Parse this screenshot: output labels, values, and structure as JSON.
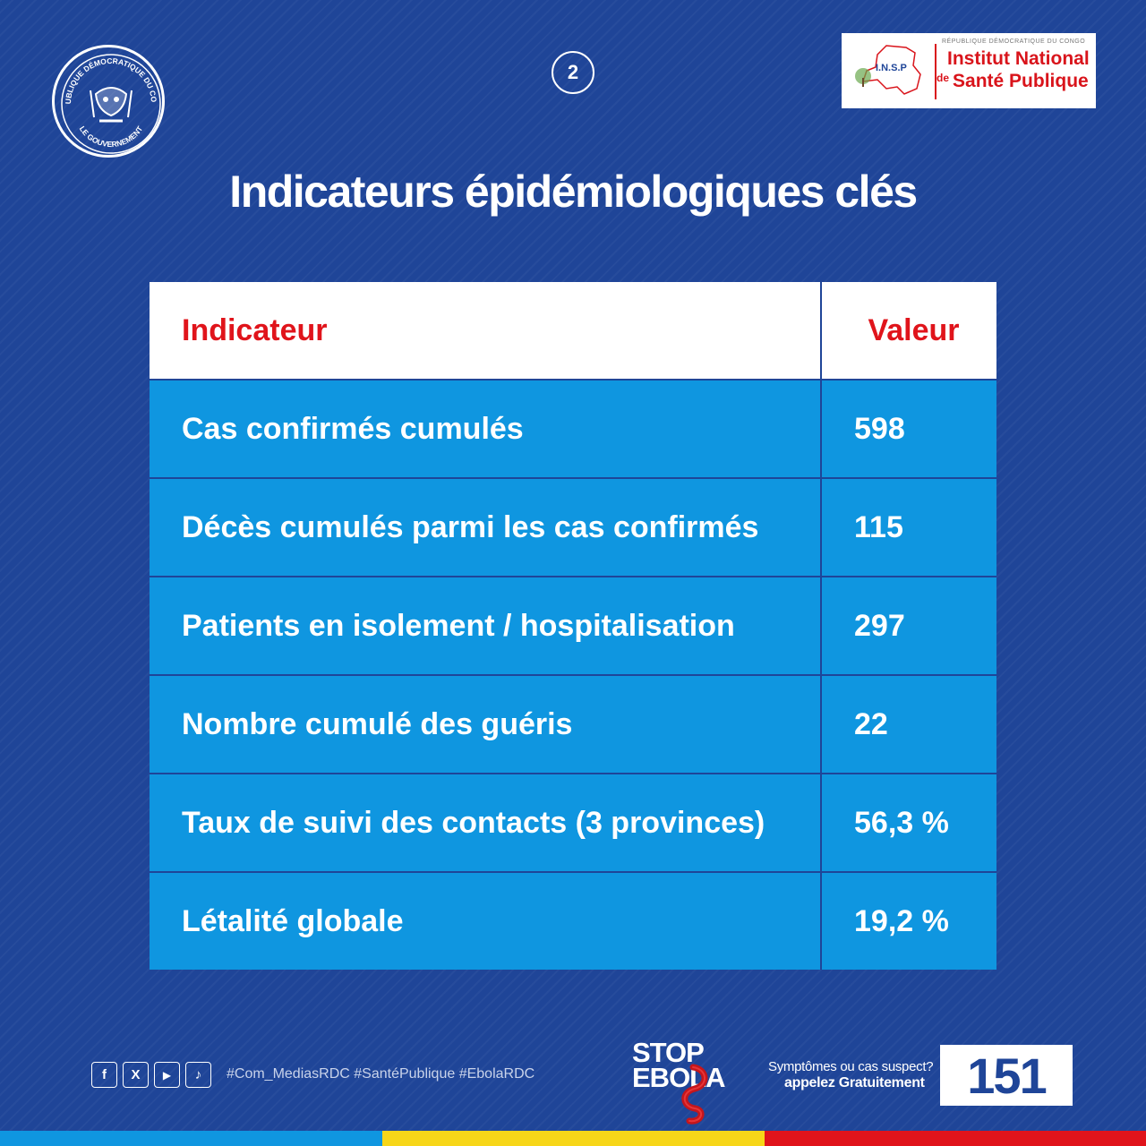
{
  "header": {
    "seal": {
      "top_text": "RÉPUBLIQUE DÉMOCRATIQUE DU CONGO",
      "bottom_text": "LE GOUVERNEMENT"
    },
    "page_number": "2",
    "insp_logo": {
      "country": "RÉPUBLIQUE DÉMOCRATIQUE DU CONGO",
      "acronym": "I.N.S.P",
      "name_line1": "Institut National",
      "name_line2_prefix": "de",
      "name_line2": "Santé Publique"
    }
  },
  "title": "Indicateurs épidémiologiques clés",
  "table": {
    "headers": {
      "indicator": "Indicateur",
      "value": "Valeur"
    },
    "rows": [
      {
        "indicator": "Cas confirmés cumulés",
        "value": "598"
      },
      {
        "indicator": "Décès cumulés parmi les cas confirmés",
        "value": "115"
      },
      {
        "indicator": "Patients en isolement / hospitalisation",
        "value": "297"
      },
      {
        "indicator": "Nombre cumulé des guéris",
        "value": "22"
      },
      {
        "indicator": "Taux de suivi des contacts (3 provinces)",
        "value": "56,3 %"
      },
      {
        "indicator": "Létalité globale",
        "value": "19,2 %"
      }
    ]
  },
  "footer": {
    "socials": [
      {
        "icon": "facebook-icon",
        "glyph": "f"
      },
      {
        "icon": "x-icon",
        "glyph": "X"
      },
      {
        "icon": "youtube-icon",
        "glyph": "▶"
      },
      {
        "icon": "tiktok-icon",
        "glyph": "♪"
      }
    ],
    "hashtags": "#Com_MediasRDC #SantéPublique #EbolaRDC",
    "stop_ebola": {
      "line1": "STOP",
      "line2": "EBOLA"
    },
    "hotline": {
      "question": "Symptômes ou cas suspect?",
      "call": "appelez Gratuitement",
      "number": "151"
    }
  },
  "colors": {
    "background": "#1f4598",
    "row_blue": "#0f96e0",
    "header_red": "#e0141b",
    "flag_blue": "#0f96e0",
    "flag_yellow": "#f7d618",
    "flag_red": "#e0141b"
  }
}
